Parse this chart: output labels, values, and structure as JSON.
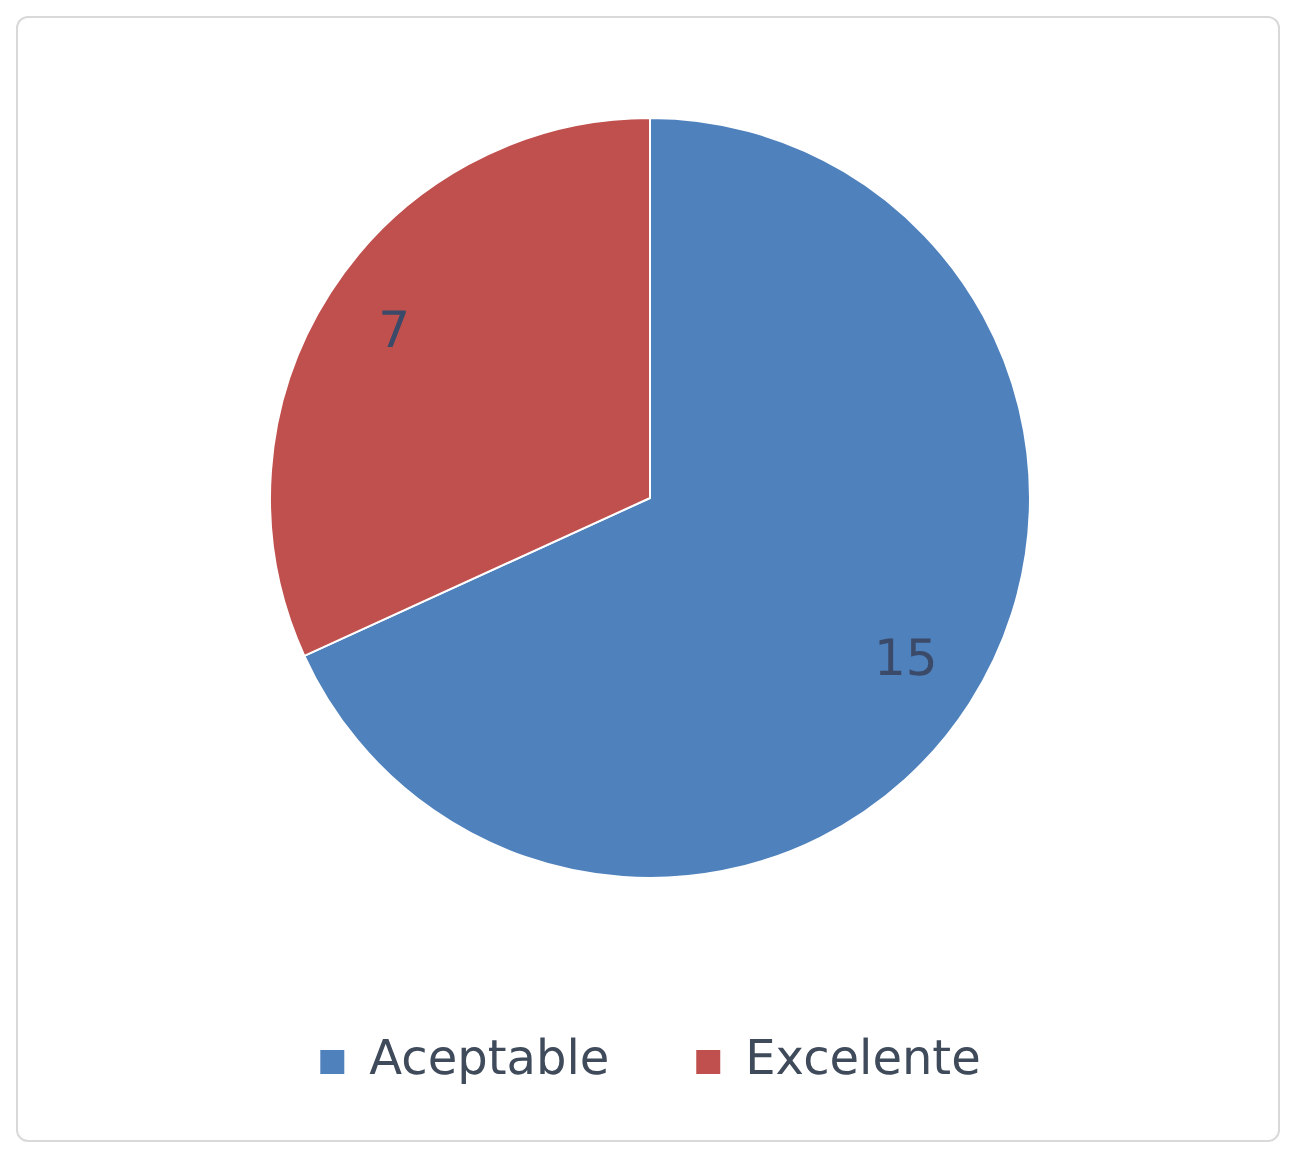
{
  "chart_data": {
    "type": "pie",
    "categories": [
      "Aceptable",
      "Excelente"
    ],
    "values": [
      15,
      7
    ],
    "colors": [
      "#4f81bd",
      "#c0504d"
    ],
    "data_labels": true,
    "legend": "bottom"
  }
}
